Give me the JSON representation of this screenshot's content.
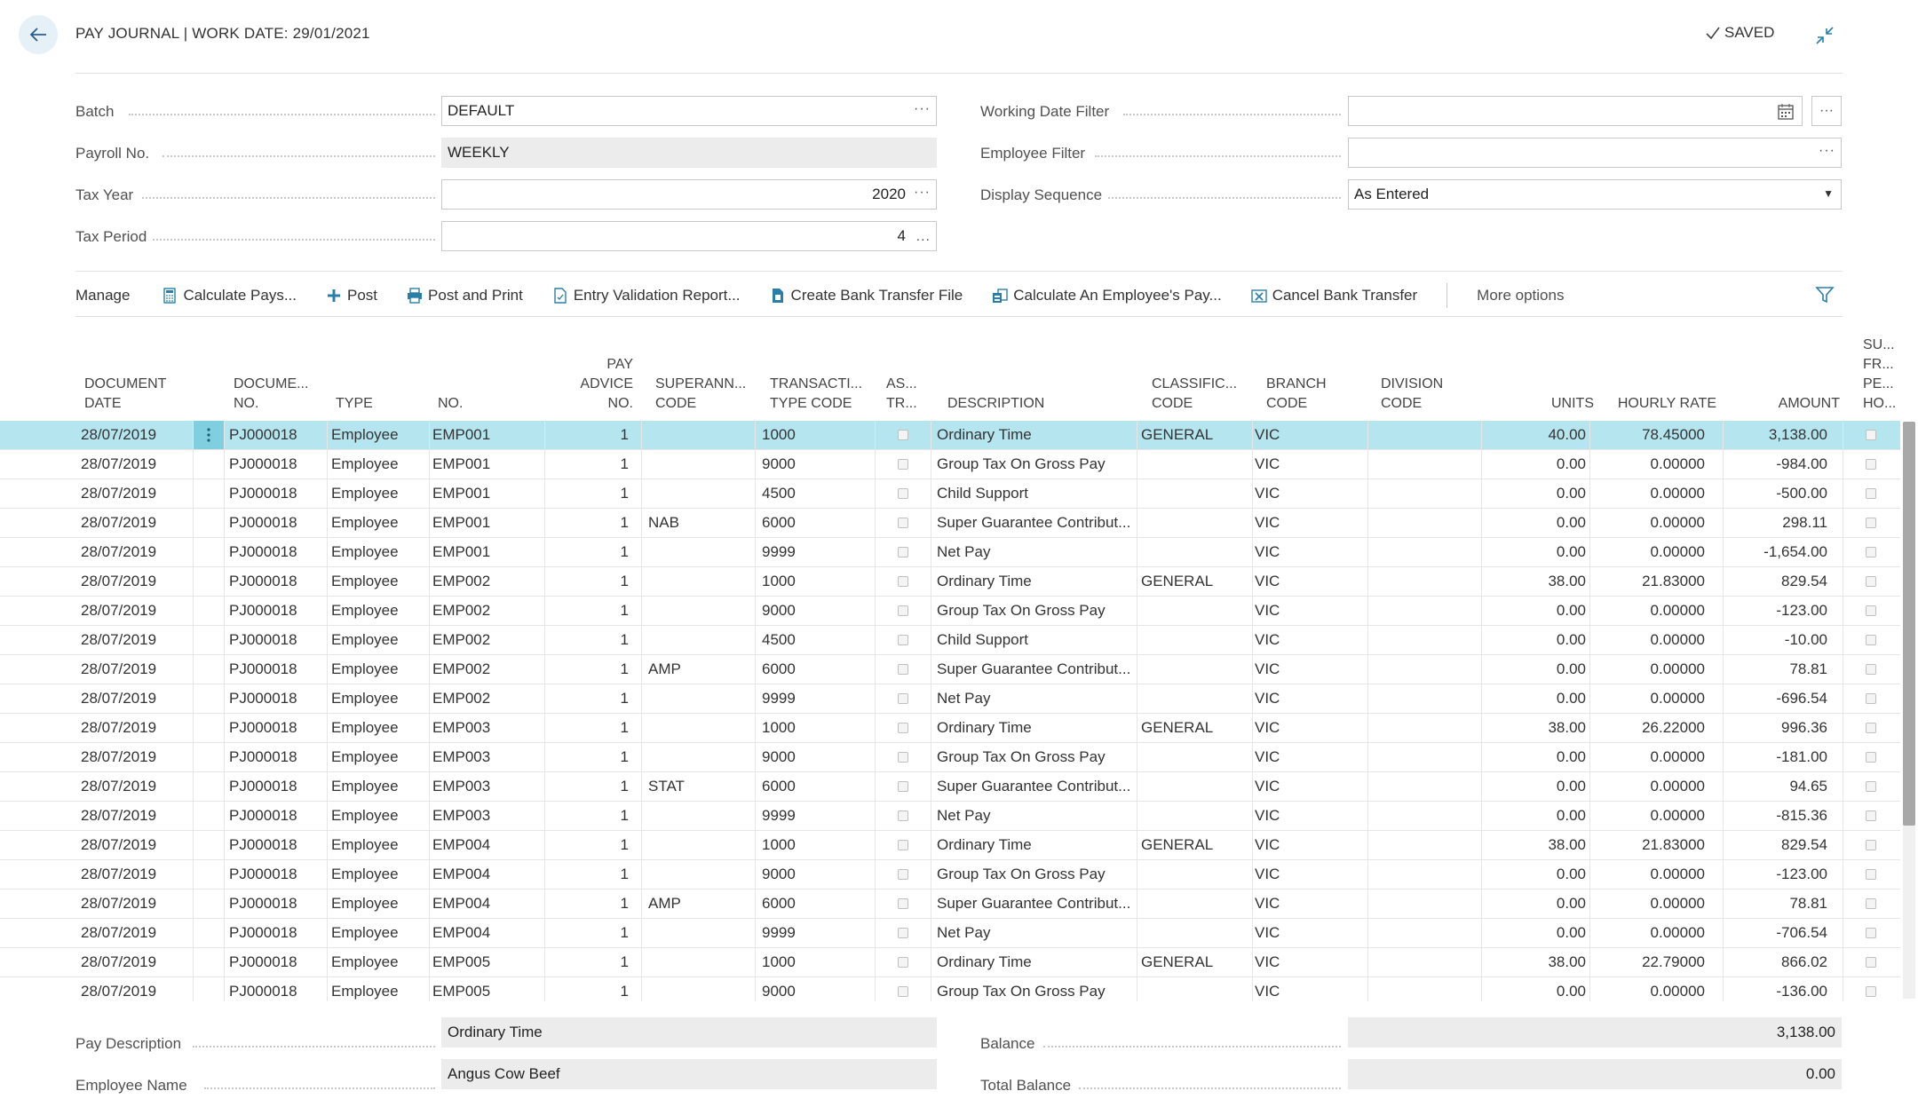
{
  "header": {
    "title": "PAY JOURNAL | WORK DATE: 29/01/2021",
    "saved_label": "SAVED"
  },
  "fields_left": {
    "batch_label": "Batch",
    "batch_value": "DEFAULT",
    "payroll_label": "Payroll No.",
    "payroll_value": "WEEKLY",
    "taxyear_label": "Tax Year",
    "taxyear_value": "2020",
    "taxperiod_label": "Tax Period",
    "taxperiod_value": "4"
  },
  "fields_right": {
    "workingdate_label": "Working Date Filter",
    "workingdate_value": "",
    "employee_label": "Employee Filter",
    "employee_value": "",
    "displayseq_label": "Display Sequence",
    "displayseq_value": "As Entered"
  },
  "actions": {
    "manage": "Manage",
    "calculate_pays": "Calculate Pays...",
    "post": "Post",
    "post_and_print": "Post and Print",
    "entry_validation": "Entry Validation Report...",
    "create_bank_transfer": "Create Bank Transfer File",
    "calculate_employee_pay": "Calculate An Employee's Pay...",
    "cancel_bank_transfer": "Cancel Bank Transfer",
    "more_options": "More options"
  },
  "columns": {
    "doc_date_1": "DOCUMENT",
    "doc_date_2": "DATE",
    "doc_no_1": "DOCUME...",
    "doc_no_2": "NO.",
    "type": "TYPE",
    "no": "NO.",
    "pay_advice_1": "PAY",
    "pay_advice_2": "ADVICE",
    "pay_advice_3": "NO.",
    "super_1": "SUPERANN...",
    "super_2": "CODE",
    "trans_1": "TRANSACTI...",
    "trans_2": "TYPE CODE",
    "as_1": "AS...",
    "as_2": "TR...",
    "description": "DESCRIPTION",
    "classif_1": "CLASSIFIC...",
    "classif_2": "CODE",
    "branch_1": "BRANCH",
    "branch_2": "CODE",
    "division_1": "DIVISION",
    "division_2": "CODE",
    "units": "UNITS",
    "hourly_rate": "HOURLY RATE",
    "amount": "AMOUNT",
    "su_1": "SU...",
    "su_2": "FR...",
    "su_3": "PE...",
    "su_4": "HO..."
  },
  "rows": [
    {
      "date": "28/07/2019",
      "doc": "PJ000018",
      "type": "Employee",
      "no": "EMP001",
      "advice": "1",
      "super": "",
      "trans": "1000",
      "desc": "Ordinary Time",
      "classif": "GENERAL",
      "branch": "VIC",
      "division": "",
      "units": "40.00",
      "rate": "78.45000",
      "amount": "3,138.00"
    },
    {
      "date": "28/07/2019",
      "doc": "PJ000018",
      "type": "Employee",
      "no": "EMP001",
      "advice": "1",
      "super": "",
      "trans": "9000",
      "desc": "Group Tax On Gross Pay",
      "classif": "",
      "branch": "VIC",
      "division": "",
      "units": "0.00",
      "rate": "0.00000",
      "amount": "-984.00"
    },
    {
      "date": "28/07/2019",
      "doc": "PJ000018",
      "type": "Employee",
      "no": "EMP001",
      "advice": "1",
      "super": "",
      "trans": "4500",
      "desc": "Child Support",
      "classif": "",
      "branch": "VIC",
      "division": "",
      "units": "0.00",
      "rate": "0.00000",
      "amount": "-500.00"
    },
    {
      "date": "28/07/2019",
      "doc": "PJ000018",
      "type": "Employee",
      "no": "EMP001",
      "advice": "1",
      "super": "NAB",
      "trans": "6000",
      "desc": "Super Guarantee Contribut...",
      "classif": "",
      "branch": "VIC",
      "division": "",
      "units": "0.00",
      "rate": "0.00000",
      "amount": "298.11"
    },
    {
      "date": "28/07/2019",
      "doc": "PJ000018",
      "type": "Employee",
      "no": "EMP001",
      "advice": "1",
      "super": "",
      "trans": "9999",
      "desc": "Net Pay",
      "classif": "",
      "branch": "VIC",
      "division": "",
      "units": "0.00",
      "rate": "0.00000",
      "amount": "-1,654.00"
    },
    {
      "date": "28/07/2019",
      "doc": "PJ000018",
      "type": "Employee",
      "no": "EMP002",
      "advice": "1",
      "super": "",
      "trans": "1000",
      "desc": "Ordinary Time",
      "classif": "GENERAL",
      "branch": "VIC",
      "division": "",
      "units": "38.00",
      "rate": "21.83000",
      "amount": "829.54"
    },
    {
      "date": "28/07/2019",
      "doc": "PJ000018",
      "type": "Employee",
      "no": "EMP002",
      "advice": "1",
      "super": "",
      "trans": "9000",
      "desc": "Group Tax On Gross Pay",
      "classif": "",
      "branch": "VIC",
      "division": "",
      "units": "0.00",
      "rate": "0.00000",
      "amount": "-123.00"
    },
    {
      "date": "28/07/2019",
      "doc": "PJ000018",
      "type": "Employee",
      "no": "EMP002",
      "advice": "1",
      "super": "",
      "trans": "4500",
      "desc": "Child Support",
      "classif": "",
      "branch": "VIC",
      "division": "",
      "units": "0.00",
      "rate": "0.00000",
      "amount": "-10.00"
    },
    {
      "date": "28/07/2019",
      "doc": "PJ000018",
      "type": "Employee",
      "no": "EMP002",
      "advice": "1",
      "super": "AMP",
      "trans": "6000",
      "desc": "Super Guarantee Contribut...",
      "classif": "",
      "branch": "VIC",
      "division": "",
      "units": "0.00",
      "rate": "0.00000",
      "amount": "78.81"
    },
    {
      "date": "28/07/2019",
      "doc": "PJ000018",
      "type": "Employee",
      "no": "EMP002",
      "advice": "1",
      "super": "",
      "trans": "9999",
      "desc": "Net Pay",
      "classif": "",
      "branch": "VIC",
      "division": "",
      "units": "0.00",
      "rate": "0.00000",
      "amount": "-696.54"
    },
    {
      "date": "28/07/2019",
      "doc": "PJ000018",
      "type": "Employee",
      "no": "EMP003",
      "advice": "1",
      "super": "",
      "trans": "1000",
      "desc": "Ordinary Time",
      "classif": "GENERAL",
      "branch": "VIC",
      "division": "",
      "units": "38.00",
      "rate": "26.22000",
      "amount": "996.36"
    },
    {
      "date": "28/07/2019",
      "doc": "PJ000018",
      "type": "Employee",
      "no": "EMP003",
      "advice": "1",
      "super": "",
      "trans": "9000",
      "desc": "Group Tax On Gross Pay",
      "classif": "",
      "branch": "VIC",
      "division": "",
      "units": "0.00",
      "rate": "0.00000",
      "amount": "-181.00"
    },
    {
      "date": "28/07/2019",
      "doc": "PJ000018",
      "type": "Employee",
      "no": "EMP003",
      "advice": "1",
      "super": "STAT",
      "trans": "6000",
      "desc": "Super Guarantee Contribut...",
      "classif": "",
      "branch": "VIC",
      "division": "",
      "units": "0.00",
      "rate": "0.00000",
      "amount": "94.65"
    },
    {
      "date": "28/07/2019",
      "doc": "PJ000018",
      "type": "Employee",
      "no": "EMP003",
      "advice": "1",
      "super": "",
      "trans": "9999",
      "desc": "Net Pay",
      "classif": "",
      "branch": "VIC",
      "division": "",
      "units": "0.00",
      "rate": "0.00000",
      "amount": "-815.36"
    },
    {
      "date": "28/07/2019",
      "doc": "PJ000018",
      "type": "Employee",
      "no": "EMP004",
      "advice": "1",
      "super": "",
      "trans": "1000",
      "desc": "Ordinary Time",
      "classif": "GENERAL",
      "branch": "VIC",
      "division": "",
      "units": "38.00",
      "rate": "21.83000",
      "amount": "829.54"
    },
    {
      "date": "28/07/2019",
      "doc": "PJ000018",
      "type": "Employee",
      "no": "EMP004",
      "advice": "1",
      "super": "",
      "trans": "9000",
      "desc": "Group Tax On Gross Pay",
      "classif": "",
      "branch": "VIC",
      "division": "",
      "units": "0.00",
      "rate": "0.00000",
      "amount": "-123.00"
    },
    {
      "date": "28/07/2019",
      "doc": "PJ000018",
      "type": "Employee",
      "no": "EMP004",
      "advice": "1",
      "super": "AMP",
      "trans": "6000",
      "desc": "Super Guarantee Contribut...",
      "classif": "",
      "branch": "VIC",
      "division": "",
      "units": "0.00",
      "rate": "0.00000",
      "amount": "78.81"
    },
    {
      "date": "28/07/2019",
      "doc": "PJ000018",
      "type": "Employee",
      "no": "EMP004",
      "advice": "1",
      "super": "",
      "trans": "9999",
      "desc": "Net Pay",
      "classif": "",
      "branch": "VIC",
      "division": "",
      "units": "0.00",
      "rate": "0.00000",
      "amount": "-706.54"
    },
    {
      "date": "28/07/2019",
      "doc": "PJ000018",
      "type": "Employee",
      "no": "EMP005",
      "advice": "1",
      "super": "",
      "trans": "1000",
      "desc": "Ordinary Time",
      "classif": "GENERAL",
      "branch": "VIC",
      "division": "",
      "units": "38.00",
      "rate": "22.79000",
      "amount": "866.02"
    },
    {
      "date": "28/07/2019",
      "doc": "PJ000018",
      "type": "Employee",
      "no": "EMP005",
      "advice": "1",
      "super": "",
      "trans": "9000",
      "desc": "Group Tax On Gross Pay",
      "classif": "",
      "branch": "VIC",
      "division": "",
      "units": "0.00",
      "rate": "0.00000",
      "amount": "-136.00"
    }
  ],
  "footer": {
    "pay_desc_label": "Pay Description",
    "pay_desc_value": "Ordinary Time",
    "employee_name_label": "Employee Name",
    "employee_name_value": "Angus Cow Beef",
    "balance_label": "Balance",
    "balance_value": "3,138.00",
    "total_balance_label": "Total Balance",
    "total_balance_value": "0.00"
  },
  "colors": {
    "selected_row": "#b5e5ef",
    "accent": "#00a1c5",
    "back_button_bg": "#e6f0f7"
  }
}
